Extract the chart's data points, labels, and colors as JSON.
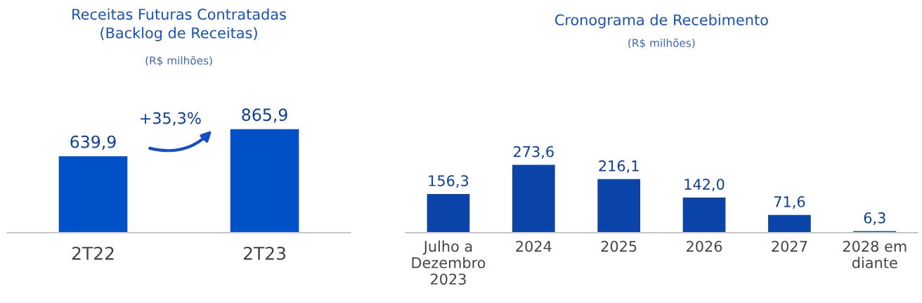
{
  "chart_data": [
    {
      "type": "bar",
      "title": "Receitas Futuras Contratadas\n(Backlog de Receitas)",
      "subtitle": "(R$ milhões)",
      "categories": [
        "2T22",
        "2T23"
      ],
      "values": [
        639.9,
        865.9
      ],
      "value_labels": [
        "639,9",
        "865,9"
      ],
      "color": "#0050c8",
      "annotations": [
        "+35,3%"
      ],
      "grid": false,
      "legend": false
    },
    {
      "type": "bar",
      "title": "Cronograma de Recebimento",
      "subtitle": "(R$ milhões)",
      "categories": [
        "Julho a\nDezembro\n2023",
        "2024",
        "2025",
        "2026",
        "2027",
        "2028 em\ndiante"
      ],
      "values": [
        156.3,
        273.6,
        216.1,
        142.0,
        71.6,
        6.3
      ],
      "value_labels": [
        "156,3",
        "273,6",
        "216,1",
        "142,0",
        "71,6",
        "6,3"
      ],
      "color": "#0a44a8",
      "grid": false,
      "legend": false
    }
  ]
}
